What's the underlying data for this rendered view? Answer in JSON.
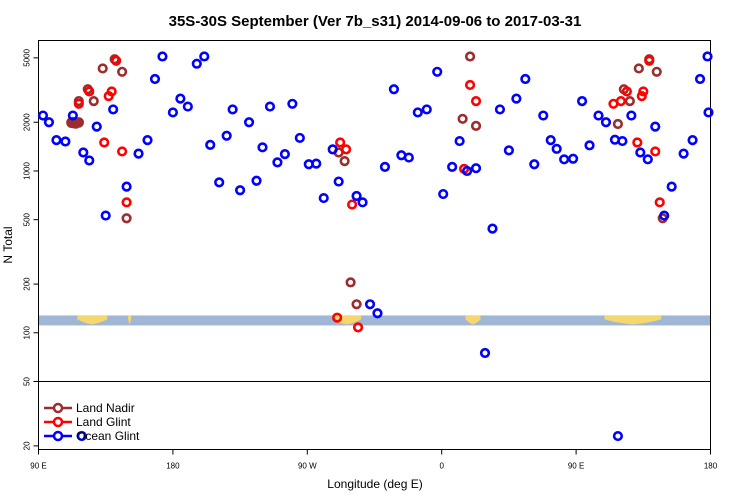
{
  "chart_data": {
    "type": "scatter",
    "title": "35S-30S September (Ver 7b_s31)   2014-09-06 to 2017-03-31",
    "xlabel": "Longitude (deg E)",
    "ylabel": "N Total",
    "xlim": [
      90,
      540
    ],
    "ylim_log": [
      19,
      6400
    ],
    "x_ticks": [
      {
        "value": 90,
        "label": "90 E"
      },
      {
        "value": 180,
        "label": "180"
      },
      {
        "value": 270,
        "label": "90 W"
      },
      {
        "value": 360,
        "label": "0"
      },
      {
        "value": 450,
        "label": "90 E"
      },
      {
        "value": 540,
        "label": "180"
      }
    ],
    "y_ticks": [
      {
        "value": 20,
        "label": "20"
      },
      {
        "value": 50,
        "label": "50"
      },
      {
        "value": 100,
        "label": "100"
      },
      {
        "value": 200,
        "label": "200"
      },
      {
        "value": 500,
        "label": "500"
      },
      {
        "value": 1000,
        "label": "1000"
      },
      {
        "value": 2000,
        "label": "2000"
      },
      {
        "value": 5000,
        "label": "5000"
      }
    ],
    "divider_at_value": 50,
    "map_strip": {
      "y_low": 111,
      "y_high": 128,
      "ocean_color": "#9fb6d4",
      "land_color": "#f5d76e"
    },
    "land_segments": [
      [
        116,
        136
      ],
      [
        150,
        152
      ],
      [
        287,
        306
      ],
      [
        376,
        386
      ],
      [
        469,
        507
      ]
    ],
    "legend": [
      {
        "label": "Land Nadir",
        "color": "#9b2d2d"
      },
      {
        "label": "Land Glint",
        "color": "#ff0000"
      },
      {
        "label": "Ocean Glint",
        "color": "#0000ff"
      }
    ],
    "series": [
      {
        "name": "Land Nadir",
        "color": "#9b2d2d",
        "points": [
          [
            117,
            2700
          ],
          [
            123,
            3200
          ],
          [
            127,
            2700
          ],
          [
            133,
            4300
          ],
          [
            141,
            4900
          ],
          [
            146,
            4100
          ],
          [
            149,
            510
          ],
          [
            291,
            1300
          ],
          [
            295,
            1150
          ],
          [
            299,
            205
          ],
          [
            303,
            150
          ],
          [
            115,
            1970
          ],
          [
            113,
            1975
          ],
          [
            114,
            2000
          ],
          [
            115,
            1960
          ],
          [
            117,
            2000
          ],
          [
            112,
            2000
          ],
          [
            113,
            1990
          ],
          [
            114,
            1970
          ],
          [
            112,
            1980
          ],
          [
            114,
            1980
          ],
          [
            116,
            1990
          ],
          [
            117,
            1990
          ],
          [
            113,
            2010
          ],
          [
            114,
            1990
          ],
          [
            374,
            2100
          ],
          [
            379,
            5100
          ],
          [
            383,
            1900
          ],
          [
            478,
            1950
          ],
          [
            482,
            3200
          ],
          [
            486,
            2700
          ],
          [
            492,
            4300
          ],
          [
            499,
            4900
          ],
          [
            504,
            4100
          ],
          [
            508,
            510
          ]
        ]
      },
      {
        "name": "Land Glint",
        "color": "#ff0000",
        "points": [
          [
            117,
            2600
          ],
          [
            124,
            3100
          ],
          [
            134,
            1500
          ],
          [
            137,
            2900
          ],
          [
            139,
            3100
          ],
          [
            142,
            4800
          ],
          [
            149,
            640
          ],
          [
            146,
            1320
          ],
          [
            290,
            124
          ],
          [
            292,
            1500
          ],
          [
            296,
            1360
          ],
          [
            300,
            620
          ],
          [
            304,
            108
          ],
          [
            375,
            1030
          ],
          [
            379,
            3400
          ],
          [
            383,
            2700
          ],
          [
            475,
            2600
          ],
          [
            480,
            2700
          ],
          [
            484,
            3100
          ],
          [
            491,
            1500
          ],
          [
            494,
            2900
          ],
          [
            495,
            3100
          ],
          [
            499,
            4800
          ],
          [
            503,
            1320
          ],
          [
            506,
            640
          ]
        ]
      },
      {
        "name": "Ocean Glint",
        "color": "#0000ff",
        "points": [
          [
            93,
            2200
          ],
          [
            97,
            2000
          ],
          [
            102,
            1550
          ],
          [
            108,
            1520
          ],
          [
            113,
            2200
          ],
          [
            120,
            1300
          ],
          [
            124,
            1160
          ],
          [
            129,
            1880
          ],
          [
            135,
            530
          ],
          [
            140,
            2400
          ],
          [
            149,
            800
          ],
          [
            157,
            1280
          ],
          [
            163,
            1550
          ],
          [
            168,
            3700
          ],
          [
            173,
            5100
          ],
          [
            180,
            2300
          ],
          [
            185,
            2800
          ],
          [
            190,
            2500
          ],
          [
            196,
            4600
          ],
          [
            201,
            5100
          ],
          [
            205,
            1450
          ],
          [
            211,
            850
          ],
          [
            216,
            1650
          ],
          [
            220,
            2400
          ],
          [
            225,
            760
          ],
          [
            231,
            2000
          ],
          [
            236,
            870
          ],
          [
            240,
            1400
          ],
          [
            245,
            2500
          ],
          [
            250,
            1130
          ],
          [
            255,
            1270
          ],
          [
            260,
            2600
          ],
          [
            265,
            1600
          ],
          [
            271,
            1100
          ],
          [
            276,
            1110
          ],
          [
            281,
            680
          ],
          [
            287,
            1360
          ],
          [
            291,
            860
          ],
          [
            303,
            700
          ],
          [
            307,
            640
          ],
          [
            312,
            150
          ],
          [
            317,
            132
          ],
          [
            322,
            1060
          ],
          [
            328,
            3200
          ],
          [
            333,
            1250
          ],
          [
            338,
            1210
          ],
          [
            344,
            2300
          ],
          [
            350,
            2400
          ],
          [
            357,
            4100
          ],
          [
            361,
            720
          ],
          [
            367,
            1060
          ],
          [
            372,
            1530
          ],
          [
            377,
            1000
          ],
          [
            383,
            1040
          ],
          [
            389,
            75
          ],
          [
            394,
            440
          ],
          [
            399,
            2400
          ],
          [
            405,
            1340
          ],
          [
            410,
            2800
          ],
          [
            416,
            3700
          ],
          [
            422,
            1100
          ],
          [
            428,
            2200
          ],
          [
            433,
            1550
          ],
          [
            437,
            1370
          ],
          [
            442,
            1180
          ],
          [
            448,
            1190
          ],
          [
            454,
            2700
          ],
          [
            459,
            1440
          ],
          [
            465,
            2200
          ],
          [
            470,
            2000
          ],
          [
            476,
            1560
          ],
          [
            481,
            1530
          ],
          [
            487,
            2200
          ],
          [
            493,
            1300
          ],
          [
            498,
            1180
          ],
          [
            503,
            1880
          ],
          [
            509,
            530
          ],
          [
            514,
            800
          ],
          [
            522,
            1280
          ],
          [
            528,
            1550
          ],
          [
            533,
            3700
          ],
          [
            538,
            5100
          ],
          [
            544,
            2300
          ],
          [
            119,
            23
          ],
          [
            478,
            23
          ]
        ]
      }
    ]
  }
}
